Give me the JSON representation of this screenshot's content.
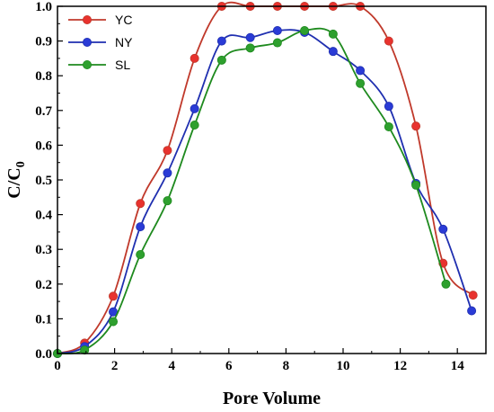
{
  "chart_data": {
    "type": "line",
    "xlabel": "Pore Volume",
    "ylabel": {
      "main": "C/C",
      "sub": "0"
    },
    "xlim": [
      0,
      15
    ],
    "ylim": [
      0,
      1.0
    ],
    "xticks": [
      0,
      2,
      4,
      6,
      8,
      10,
      12,
      14
    ],
    "yticks": [
      0.0,
      0.1,
      0.2,
      0.3,
      0.4,
      0.5,
      0.6,
      0.7,
      0.8,
      0.9,
      1.0
    ],
    "grid": false,
    "legend_position": "top-left",
    "series": [
      {
        "name": "YC",
        "line_color": "#c0392b",
        "marker_color": "#e8322e",
        "x": [
          0,
          0.95,
          1.95,
          2.9,
          3.85,
          4.8,
          5.75,
          6.75,
          7.7,
          8.65,
          9.65,
          10.6,
          11.6,
          12.55,
          13.5,
          14.55
        ],
        "y": [
          0,
          0.03,
          0.165,
          0.432,
          0.585,
          0.85,
          1.0,
          1.0,
          1.0,
          1.0,
          1.0,
          1.0,
          0.9,
          0.655,
          0.26,
          0.168
        ]
      },
      {
        "name": "NY",
        "line_color": "#1f2fb0",
        "marker_color": "#2a3bd6",
        "x": [
          0,
          0.95,
          1.95,
          2.9,
          3.85,
          4.8,
          5.75,
          6.75,
          7.7,
          8.65,
          9.65,
          10.6,
          11.6,
          12.55,
          13.5,
          14.5
        ],
        "y": [
          0,
          0.02,
          0.12,
          0.365,
          0.52,
          0.705,
          0.9,
          0.91,
          0.93,
          0.925,
          0.87,
          0.815,
          0.712,
          0.49,
          0.358,
          0.123
        ]
      },
      {
        "name": "SL",
        "line_color": "#1e8a1e",
        "marker_color": "#2ea02e",
        "x": [
          0,
          0.95,
          1.95,
          2.9,
          3.85,
          4.8,
          5.75,
          6.75,
          7.7,
          8.65,
          9.65,
          10.6,
          11.6,
          12.55,
          13.6
        ],
        "y": [
          0,
          0.01,
          0.092,
          0.285,
          0.44,
          0.658,
          0.845,
          0.88,
          0.895,
          0.93,
          0.92,
          0.778,
          0.653,
          0.485,
          0.2
        ]
      }
    ]
  }
}
